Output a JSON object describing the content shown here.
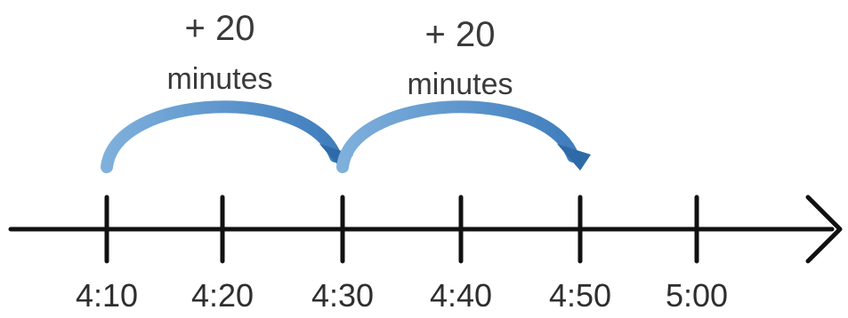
{
  "number_line": {
    "ticks": [
      "4:10",
      "4:20",
      "4:30",
      "4:40",
      "4:50",
      "5:00"
    ]
  },
  "jumps": [
    {
      "amount": "+ 20",
      "unit": "minutes",
      "from_tick": 0,
      "to_tick": 2
    },
    {
      "amount": "+ 20",
      "unit": "minutes",
      "from_tick": 2,
      "to_tick": 4
    }
  ],
  "colors": {
    "arrow": "#4a86c5",
    "arrow_dark": "#2f6aa8",
    "line": "#111111",
    "text": "#3a3a3a"
  }
}
